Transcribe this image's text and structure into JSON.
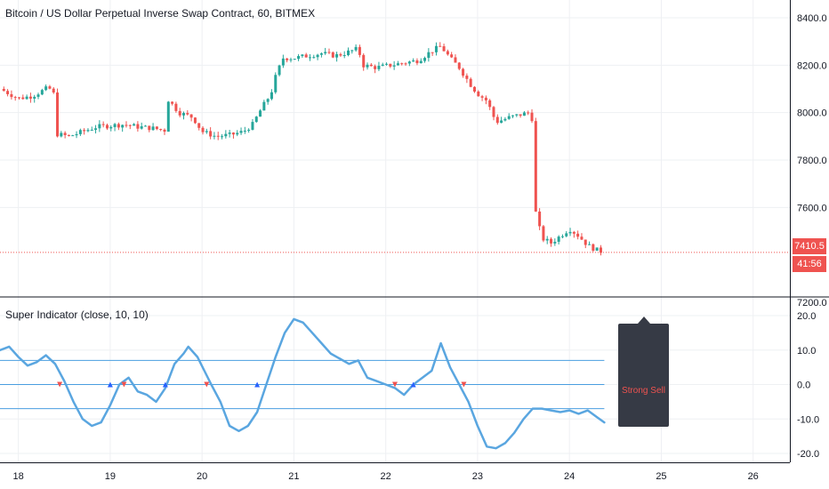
{
  "chart_data": [
    {
      "type": "candlestick",
      "title": "Bitcoin / US Dollar Perpetual Inverse Swap Contract, 60, BITMEX",
      "ylim": [
        7200,
        8400
      ],
      "y_ticks": [
        "8400.0",
        "8200.0",
        "8000.0",
        "7800.0",
        "7600.0",
        "7200.0"
      ],
      "x_ticks": [
        "18",
        "19",
        "20",
        "21",
        "22",
        "23",
        "24",
        "25",
        "26"
      ],
      "x_range": [
        17.8,
        26.4
      ],
      "last_price": "7410.5",
      "last_price_value": 7410.5,
      "countdown": "41:56",
      "colors": {
        "up": "#26a69a",
        "down": "#ef5350",
        "grid": "#eef0f3"
      },
      "path": [
        [
          17.8,
          8100
        ],
        [
          18.0,
          8060
        ],
        [
          18.15,
          8070
        ],
        [
          18.3,
          8100
        ],
        [
          18.38,
          8100
        ],
        [
          18.41,
          7910
        ],
        [
          18.55,
          7900
        ],
        [
          18.7,
          7920
        ],
        [
          18.85,
          7940
        ],
        [
          19.0,
          7945
        ],
        [
          19.15,
          7950
        ],
        [
          19.3,
          7940
        ],
        [
          19.45,
          7935
        ],
        [
          19.6,
          7925
        ],
        [
          19.62,
          8060
        ],
        [
          19.75,
          8000
        ],
        [
          19.9,
          7980
        ],
        [
          20.0,
          7920
        ],
        [
          20.15,
          7900
        ],
        [
          20.3,
          7905
        ],
        [
          20.45,
          7920
        ],
        [
          20.55,
          7950
        ],
        [
          20.65,
          8020
        ],
        [
          20.75,
          8080
        ],
        [
          20.8,
          8150
        ],
        [
          20.88,
          8230
        ],
        [
          21.0,
          8230
        ],
        [
          21.15,
          8240
        ],
        [
          21.3,
          8250
        ],
        [
          21.45,
          8240
        ],
        [
          21.55,
          8250
        ],
        [
          21.7,
          8270
        ],
        [
          21.75,
          8200
        ],
        [
          21.9,
          8190
        ],
        [
          22.05,
          8200
        ],
        [
          22.2,
          8210
        ],
        [
          22.35,
          8220
        ],
        [
          22.5,
          8260
        ],
        [
          22.6,
          8280
        ],
        [
          22.7,
          8230
        ],
        [
          22.8,
          8190
        ],
        [
          22.92,
          8120
        ],
        [
          23.0,
          8080
        ],
        [
          23.1,
          8050
        ],
        [
          23.2,
          7960
        ],
        [
          23.35,
          7980
        ],
        [
          23.45,
          7990
        ],
        [
          23.55,
          8000
        ],
        [
          23.6,
          7970
        ],
        [
          23.62,
          7600
        ],
        [
          23.7,
          7470
        ],
        [
          23.8,
          7450
        ],
        [
          23.9,
          7480
        ],
        [
          24.0,
          7510
        ],
        [
          24.1,
          7480
        ],
        [
          24.2,
          7440
        ],
        [
          24.3,
          7420
        ],
        [
          24.38,
          7410
        ]
      ]
    },
    {
      "type": "line",
      "title": "Super Indicator (close, 10, 10)",
      "ylim": [
        -20,
        20
      ],
      "y_ticks": [
        "20.0",
        "10.0",
        "0.0",
        "-10.0",
        "-20.0"
      ],
      "levels": [
        7,
        0,
        -7
      ],
      "series": [
        {
          "color": "#5aa6e0",
          "points": [
            [
              17.8,
              10.0
            ],
            [
              17.9,
              11.0
            ],
            [
              18.0,
              8.0
            ],
            [
              18.1,
              5.5
            ],
            [
              18.2,
              6.5
            ],
            [
              18.3,
              8.5
            ],
            [
              18.4,
              6.0
            ],
            [
              18.5,
              1.0
            ],
            [
              18.6,
              -5.0
            ],
            [
              18.7,
              -10.0
            ],
            [
              18.8,
              -12.0
            ],
            [
              18.9,
              -11.0
            ],
            [
              19.0,
              -6.0
            ],
            [
              19.1,
              0.0
            ],
            [
              19.2,
              2.0
            ],
            [
              19.3,
              -2.0
            ],
            [
              19.4,
              -3.0
            ],
            [
              19.5,
              -5.0
            ],
            [
              19.6,
              -1.0
            ],
            [
              19.7,
              6.0
            ],
            [
              19.8,
              9.0
            ],
            [
              19.85,
              11.0
            ],
            [
              19.95,
              8.0
            ],
            [
              20.1,
              0.0
            ],
            [
              20.2,
              -5.0
            ],
            [
              20.3,
              -12.0
            ],
            [
              20.4,
              -13.5
            ],
            [
              20.5,
              -12.0
            ],
            [
              20.6,
              -8.0
            ],
            [
              20.7,
              0.0
            ],
            [
              20.8,
              8.0
            ],
            [
              20.9,
              15.0
            ],
            [
              21.0,
              19.0
            ],
            [
              21.1,
              18.0
            ],
            [
              21.2,
              15.0
            ],
            [
              21.3,
              12.0
            ],
            [
              21.4,
              9.0
            ],
            [
              21.5,
              7.5
            ],
            [
              21.6,
              6.0
            ],
            [
              21.7,
              7.0
            ],
            [
              21.8,
              2.0
            ],
            [
              21.9,
              1.0
            ],
            [
              22.0,
              0.0
            ],
            [
              22.1,
              -1.0
            ],
            [
              22.2,
              -3.0
            ],
            [
              22.3,
              0.0
            ],
            [
              22.4,
              2.0
            ],
            [
              22.5,
              4.0
            ],
            [
              22.6,
              12.0
            ],
            [
              22.7,
              5.0
            ],
            [
              22.8,
              0.0
            ],
            [
              22.9,
              -5.0
            ],
            [
              23.0,
              -12.0
            ],
            [
              23.1,
              -18.0
            ],
            [
              23.2,
              -18.5
            ],
            [
              23.3,
              -17.0
            ],
            [
              23.4,
              -14.0
            ],
            [
              23.5,
              -10.0
            ],
            [
              23.6,
              -7.0
            ],
            [
              23.7,
              -7.0
            ],
            [
              23.8,
              -7.5
            ],
            [
              23.9,
              -8.0
            ],
            [
              24.0,
              -7.5
            ],
            [
              24.1,
              -8.5
            ],
            [
              24.2,
              -7.5
            ],
            [
              24.3,
              -9.5
            ],
            [
              24.38,
              -11.0
            ]
          ]
        }
      ],
      "sell_markers_x": [
        18.45,
        19.15,
        20.05,
        22.1,
        22.85
      ],
      "buy_markers_x": [
        19.0,
        19.6,
        20.6,
        22.3
      ],
      "signal": "Strong Sell"
    }
  ]
}
